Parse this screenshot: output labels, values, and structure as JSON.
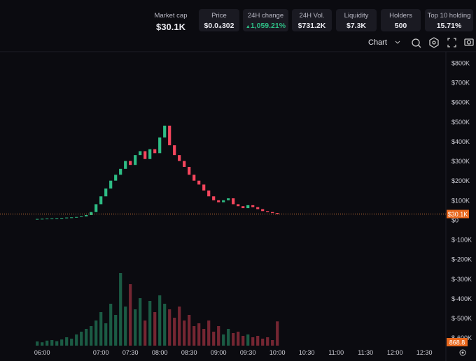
{
  "stats": [
    {
      "label": "Market cap",
      "value": "$30.1K"
    },
    {
      "label": "Price",
      "value": "$0.0₄302"
    },
    {
      "label": "24H change",
      "value": "1,059.21%"
    },
    {
      "label": "24H Vol.",
      "value": "$731.2K"
    },
    {
      "label": "Liquidity",
      "value": "$7.3K"
    },
    {
      "label": "Holders",
      "value": "500"
    },
    {
      "label": "Top 10 holding",
      "value": "15.71%"
    }
  ],
  "toolbar": {
    "view": "Chart"
  },
  "chart": {
    "type": "candlestick",
    "ylim": [
      -640000,
      853000
    ],
    "yticks": [
      {
        "value": 800000,
        "label": "$800K"
      },
      {
        "value": 700000,
        "label": "$700K"
      },
      {
        "value": 600000,
        "label": "$600K"
      },
      {
        "value": 500000,
        "label": "$500K"
      },
      {
        "value": 400000,
        "label": "$400K"
      },
      {
        "value": 300000,
        "label": "$300K"
      },
      {
        "value": 200000,
        "label": "$200K"
      },
      {
        "value": 100000,
        "label": "$100K"
      },
      {
        "value": 0,
        "label": "$0"
      },
      {
        "value": -100000,
        "label": "$-100K"
      },
      {
        "value": -200000,
        "label": "$-200K"
      },
      {
        "value": -300000,
        "label": "$-300K"
      },
      {
        "value": -400000,
        "label": "$-400K"
      },
      {
        "value": -500000,
        "label": "$-500K"
      },
      {
        "value": -600000,
        "label": "$-600K"
      }
    ],
    "xlim": [
      317,
      772
    ],
    "xticks": [
      {
        "value": 360,
        "label": "06:00"
      },
      {
        "value": 420,
        "label": "07:00"
      },
      {
        "value": 450,
        "label": "07:30"
      },
      {
        "value": 480,
        "label": "08:00"
      },
      {
        "value": 510,
        "label": "08:30"
      },
      {
        "value": 540,
        "label": "09:00"
      },
      {
        "value": 570,
        "label": "09:30"
      },
      {
        "value": 600,
        "label": "10:00"
      },
      {
        "value": 630,
        "label": "10:30"
      },
      {
        "value": 660,
        "label": "11:00"
      },
      {
        "value": 690,
        "label": "11:30"
      },
      {
        "value": 720,
        "label": "12:00"
      },
      {
        "value": 750,
        "label": "12:30"
      }
    ],
    "x": [
      355,
      360,
      365,
      370,
      375,
      380,
      385,
      390,
      395,
      400,
      405,
      410,
      415,
      420,
      425,
      430,
      435,
      440,
      445,
      450,
      455,
      460,
      465,
      470,
      475,
      480,
      485,
      490,
      495,
      500,
      505,
      510,
      515,
      520,
      525,
      530,
      535,
      540,
      545,
      550,
      555,
      560,
      565,
      570,
      575,
      580,
      585,
      590,
      595,
      600
    ],
    "open": [
      4000,
      5000,
      6000,
      7000,
      8000,
      9000,
      10000,
      12000,
      13000,
      15000,
      18000,
      25000,
      40000,
      80000,
      120000,
      160000,
      200000,
      230000,
      260000,
      300000,
      280000,
      330000,
      350000,
      310000,
      360000,
      340000,
      420000,
      480000,
      380000,
      330000,
      300000,
      270000,
      230000,
      200000,
      180000,
      150000,
      120000,
      100000,
      90000,
      100000,
      110000,
      80000,
      70000,
      60000,
      75000,
      65000,
      55000,
      45000,
      40000,
      35000
    ],
    "close": [
      5000,
      6000,
      7000,
      8000,
      9000,
      10000,
      12000,
      13000,
      15000,
      18000,
      25000,
      40000,
      80000,
      120000,
      160000,
      200000,
      230000,
      260000,
      300000,
      280000,
      330000,
      350000,
      310000,
      360000,
      340000,
      420000,
      480000,
      380000,
      330000,
      300000,
      270000,
      230000,
      200000,
      180000,
      150000,
      120000,
      100000,
      90000,
      100000,
      110000,
      80000,
      70000,
      60000,
      75000,
      65000,
      55000,
      45000,
      40000,
      35000,
      30100
    ],
    "volume": [
      150,
      120,
      180,
      200,
      160,
      220,
      300,
      250,
      400,
      500,
      600,
      700,
      900,
      1200,
      800,
      1500,
      1100,
      2600,
      1400,
      2200,
      1300,
      1700,
      900,
      1600,
      1200,
      1800,
      1500,
      1300,
      1000,
      1400,
      900,
      1100,
      700,
      800,
      600,
      900,
      500,
      700,
      400,
      600,
      450,
      500,
      350,
      400,
      300,
      350,
      250,
      300,
      200,
      868.8
    ],
    "vlim": [
      0,
      3000
    ],
    "price_label": {
      "value": 30100,
      "label": "$30.1K"
    },
    "volume_label": {
      "value": 868.8,
      "label": "868.8"
    },
    "up_color": "#2ebd85",
    "down_color": "#f6465d"
  }
}
